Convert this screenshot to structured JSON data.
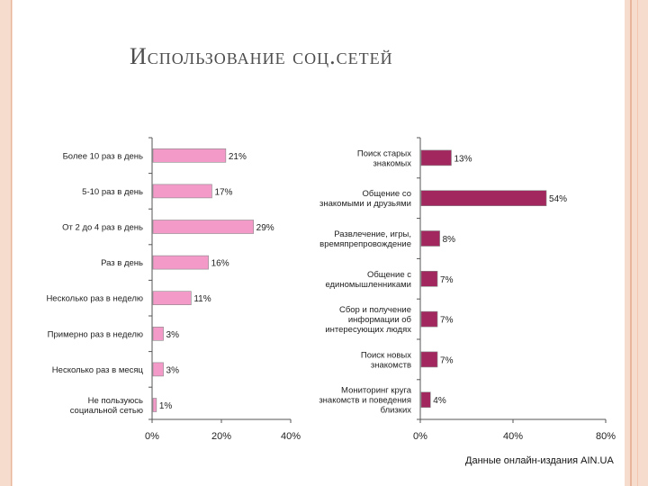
{
  "slide": {
    "title": "Использование соц.сетей",
    "source": "Данные онлайн-издания AIN.UA"
  },
  "chart_data": [
    {
      "type": "bar",
      "orientation": "horizontal",
      "categories": [
        [
          "Более 10 раз в день"
        ],
        [
          "5-10 раз в день"
        ],
        [
          "От 2 до 4 раз в день"
        ],
        [
          "Раз в день"
        ],
        [
          "Несколько раз в неделю"
        ],
        [
          "Примерно раз в неделю"
        ],
        [
          "Несколько раз в месяц"
        ],
        [
          "Не пользуюсь",
          "социальной сетью"
        ]
      ],
      "values": [
        21,
        17,
        29,
        16,
        11,
        3,
        3,
        1
      ],
      "value_labels": [
        "21%",
        "17%",
        "29%",
        "16%",
        "11%",
        "3%",
        "3%",
        "1%"
      ],
      "xlim": [
        0,
        40
      ],
      "xticks": [
        "0%",
        "20%",
        "40%"
      ],
      "color": "#f49ac9"
    },
    {
      "type": "bar",
      "orientation": "horizontal",
      "categories": [
        [
          "Поиск старых",
          "знакомых"
        ],
        [
          "Общение со",
          "знакомыми и друзьями"
        ],
        [
          "Развлечение, игры,",
          "времяпрепровождение"
        ],
        [
          "Общение с",
          "единомышленниками"
        ],
        [
          "Сбор и получение",
          "информации об",
          "интересующих людях"
        ],
        [
          "Поиск новых",
          "знакомств"
        ],
        [
          "Мониторинг круга",
          "знакомств и поведения",
          "близких"
        ]
      ],
      "values": [
        13,
        54,
        8,
        7,
        7,
        7,
        4
      ],
      "value_labels": [
        "13%",
        "54%",
        "8%",
        "7%",
        "7%",
        "7%",
        "4%"
      ],
      "xlim": [
        0,
        80
      ],
      "xticks": [
        "0%",
        "40%",
        "80%"
      ],
      "color": "#a3275f"
    }
  ]
}
